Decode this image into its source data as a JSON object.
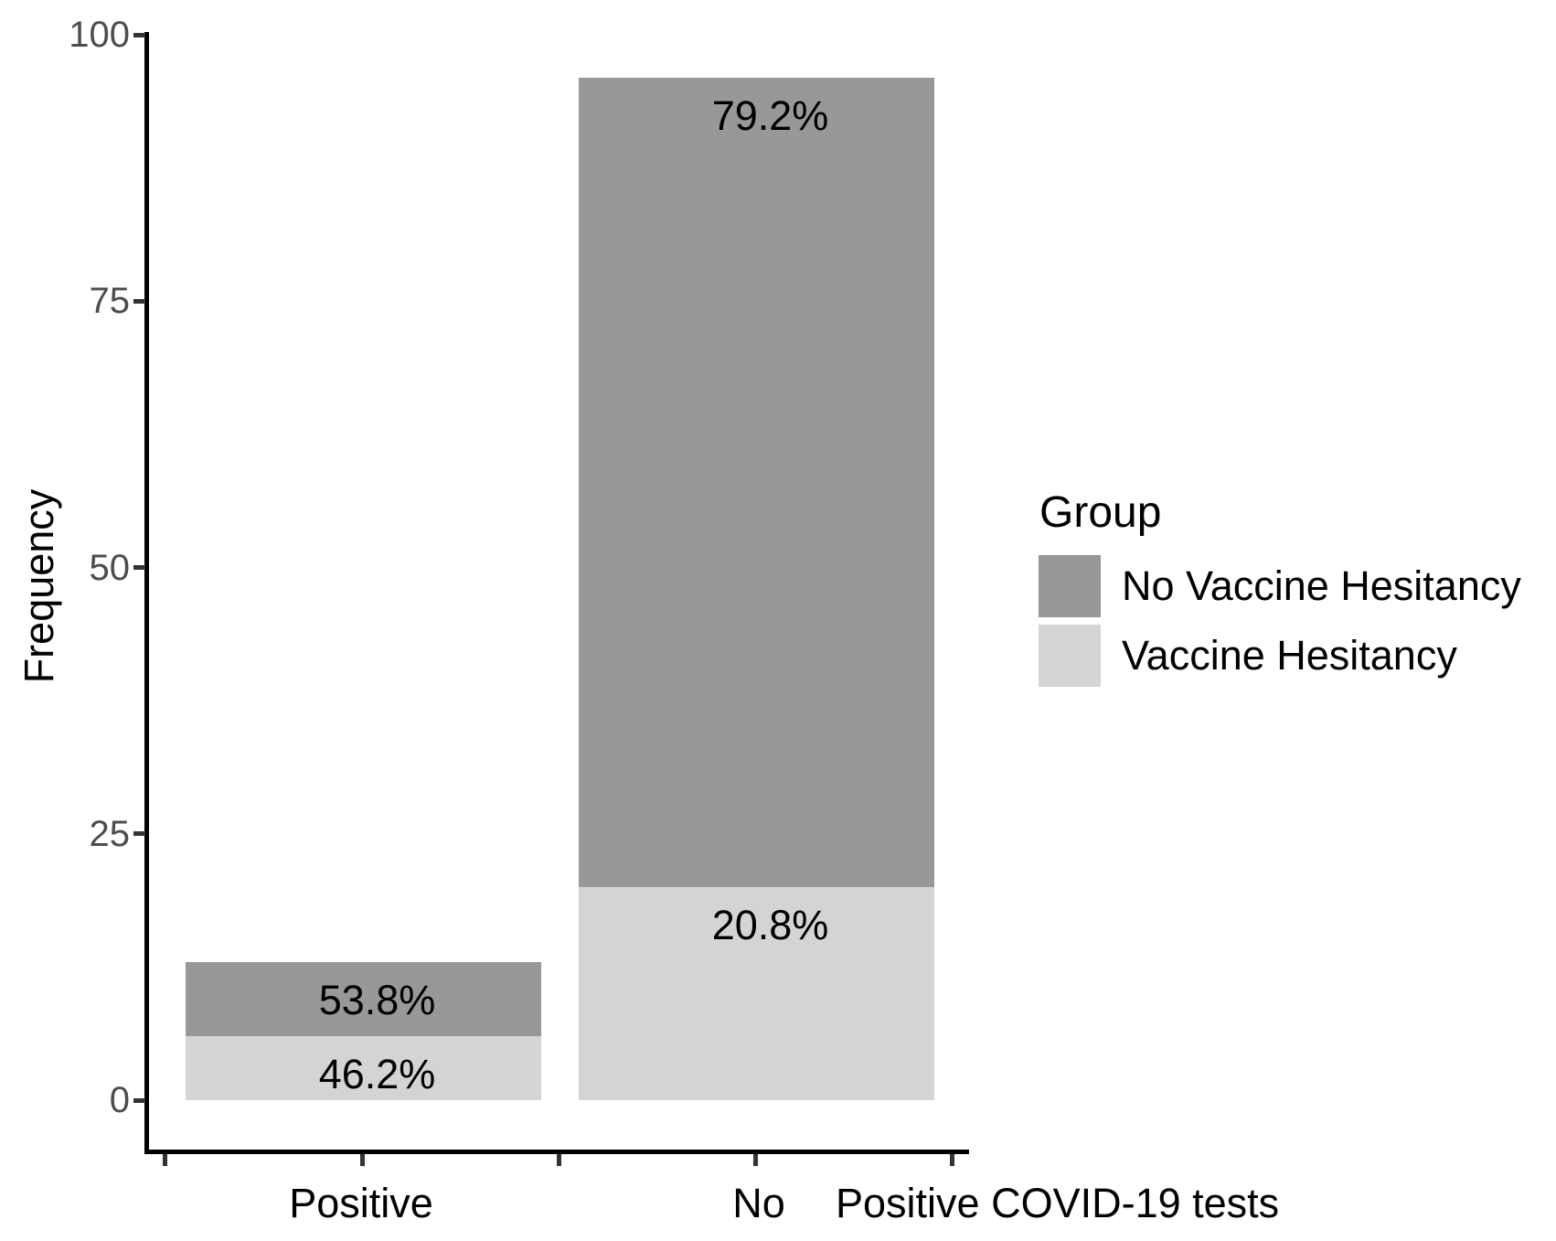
{
  "chart_data": {
    "type": "bar",
    "stacked": true,
    "title": "",
    "xlabel": "Positive COVID-19 tests",
    "ylabel": "Frequency",
    "categories": [
      "Positive",
      "No"
    ],
    "series": [
      {
        "name": "Vaccine Hesitancy",
        "color": "#d4d4d4",
        "values": [
          6,
          20
        ],
        "labels": [
          "46.2%",
          "20.8%"
        ]
      },
      {
        "name": "No Vaccine Hesitancy",
        "color": "#989898",
        "values": [
          7,
          76
        ],
        "labels": [
          "53.8%",
          "79.2%"
        ]
      }
    ],
    "totals": [
      13,
      96
    ],
    "ylim": [
      0,
      100
    ],
    "yticks": [
      0,
      25,
      50,
      75,
      100
    ],
    "grid": false,
    "legend": {
      "title": "Group",
      "position": "right",
      "entries": [
        {
          "label": "No Vaccine Hesitancy",
          "series": "No Vaccine Hesitancy"
        },
        {
          "label": "Vaccine Hesitancy",
          "series": "Vaccine Hesitancy"
        }
      ]
    }
  },
  "colors": {
    "bar_dark": "#989898",
    "bar_light": "#d4d4d4",
    "axis_line": "#000000",
    "tick_mark": "#333333",
    "y_tick_text": "#4d4d4d",
    "x_tick_text": "#000000"
  }
}
